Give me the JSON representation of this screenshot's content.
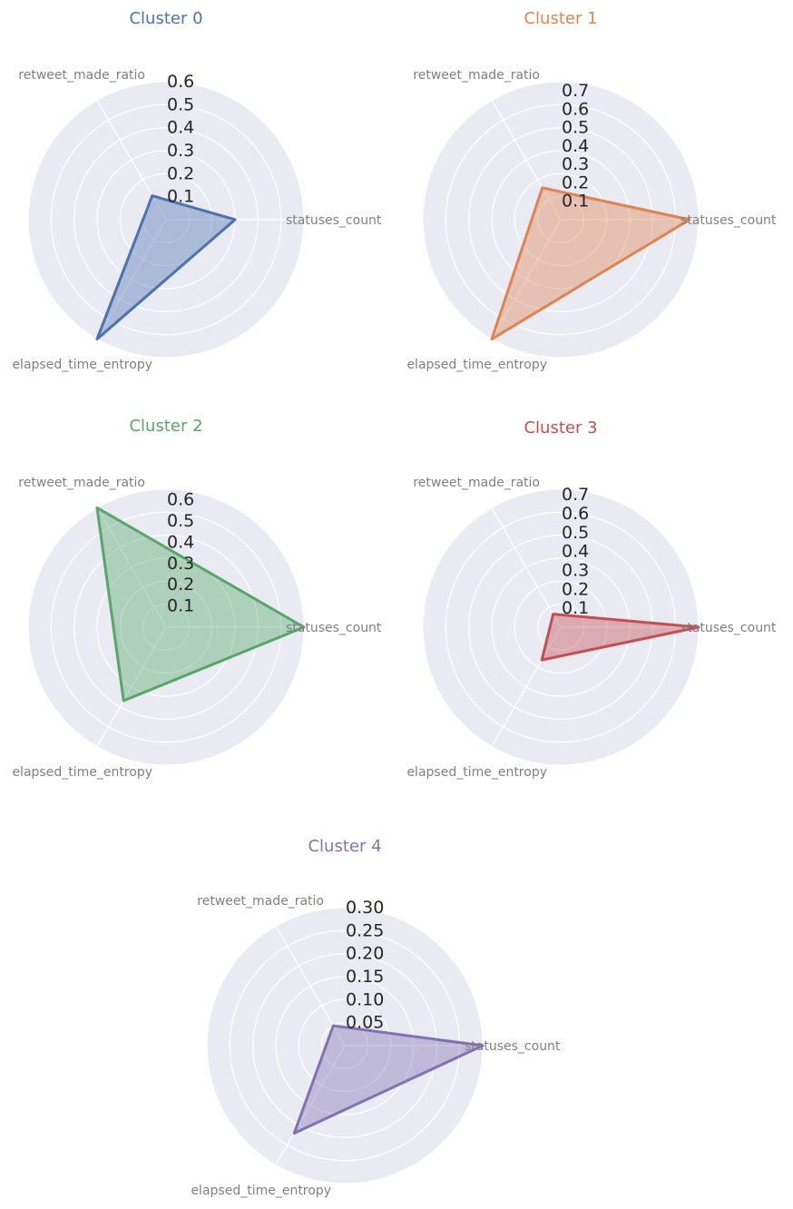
{
  "colors": {
    "background": "#eaeaf2",
    "grid": "#ffffff",
    "label_text": "#808080",
    "tick_text": "#262626"
  },
  "chart_data": [
    {
      "type": "radar",
      "title": "Cluster 0",
      "color": "#4c72b0",
      "axes": [
        "statuses_count",
        "retweet_made_ratio",
        "elapsed_time_entropy"
      ],
      "values": [
        0.3,
        0.12,
        0.6
      ],
      "rlim": [
        0,
        0.6
      ],
      "rticks": [
        "0.1",
        "0.2",
        "0.3",
        "0.4",
        "0.5",
        "0.6"
      ],
      "grid": true
    },
    {
      "type": "radar",
      "title": "Cluster 1",
      "color": "#dd8452",
      "axes": [
        "statuses_count",
        "retweet_made_ratio",
        "elapsed_time_entropy"
      ],
      "values": [
        0.7,
        0.2,
        0.75
      ],
      "rlim": [
        0,
        0.75
      ],
      "rticks": [
        "0.1",
        "0.2",
        "0.3",
        "0.4",
        "0.5",
        "0.6",
        "0.7"
      ],
      "grid": true
    },
    {
      "type": "radar",
      "title": "Cluster 2",
      "color": "#55a868",
      "axes": [
        "statuses_count",
        "retweet_made_ratio",
        "elapsed_time_entropy"
      ],
      "values": [
        0.65,
        0.65,
        0.4
      ],
      "rlim": [
        0,
        0.65
      ],
      "rticks": [
        "0.1",
        "0.2",
        "0.3",
        "0.4",
        "0.5",
        "0.6"
      ],
      "grid": true
    },
    {
      "type": "radar",
      "title": "Cluster 3",
      "color": "#c44e52",
      "axes": [
        "statuses_count",
        "retweet_made_ratio",
        "elapsed_time_entropy"
      ],
      "values": [
        0.73,
        0.08,
        0.2
      ],
      "rlim": [
        0,
        0.73
      ],
      "rticks": [
        "0.1",
        "0.2",
        "0.3",
        "0.4",
        "0.5",
        "0.6",
        "0.7"
      ],
      "grid": true
    },
    {
      "type": "radar",
      "title": "Cluster 4",
      "color": "#8172b3",
      "axes": [
        "statuses_count",
        "retweet_made_ratio",
        "elapsed_time_entropy"
      ],
      "values": [
        0.3,
        0.05,
        0.22
      ],
      "rlim": [
        0,
        0.3
      ],
      "rticks": [
        "0.05",
        "0.10",
        "0.15",
        "0.20",
        "0.25",
        "0.30"
      ],
      "grid": true
    }
  ]
}
